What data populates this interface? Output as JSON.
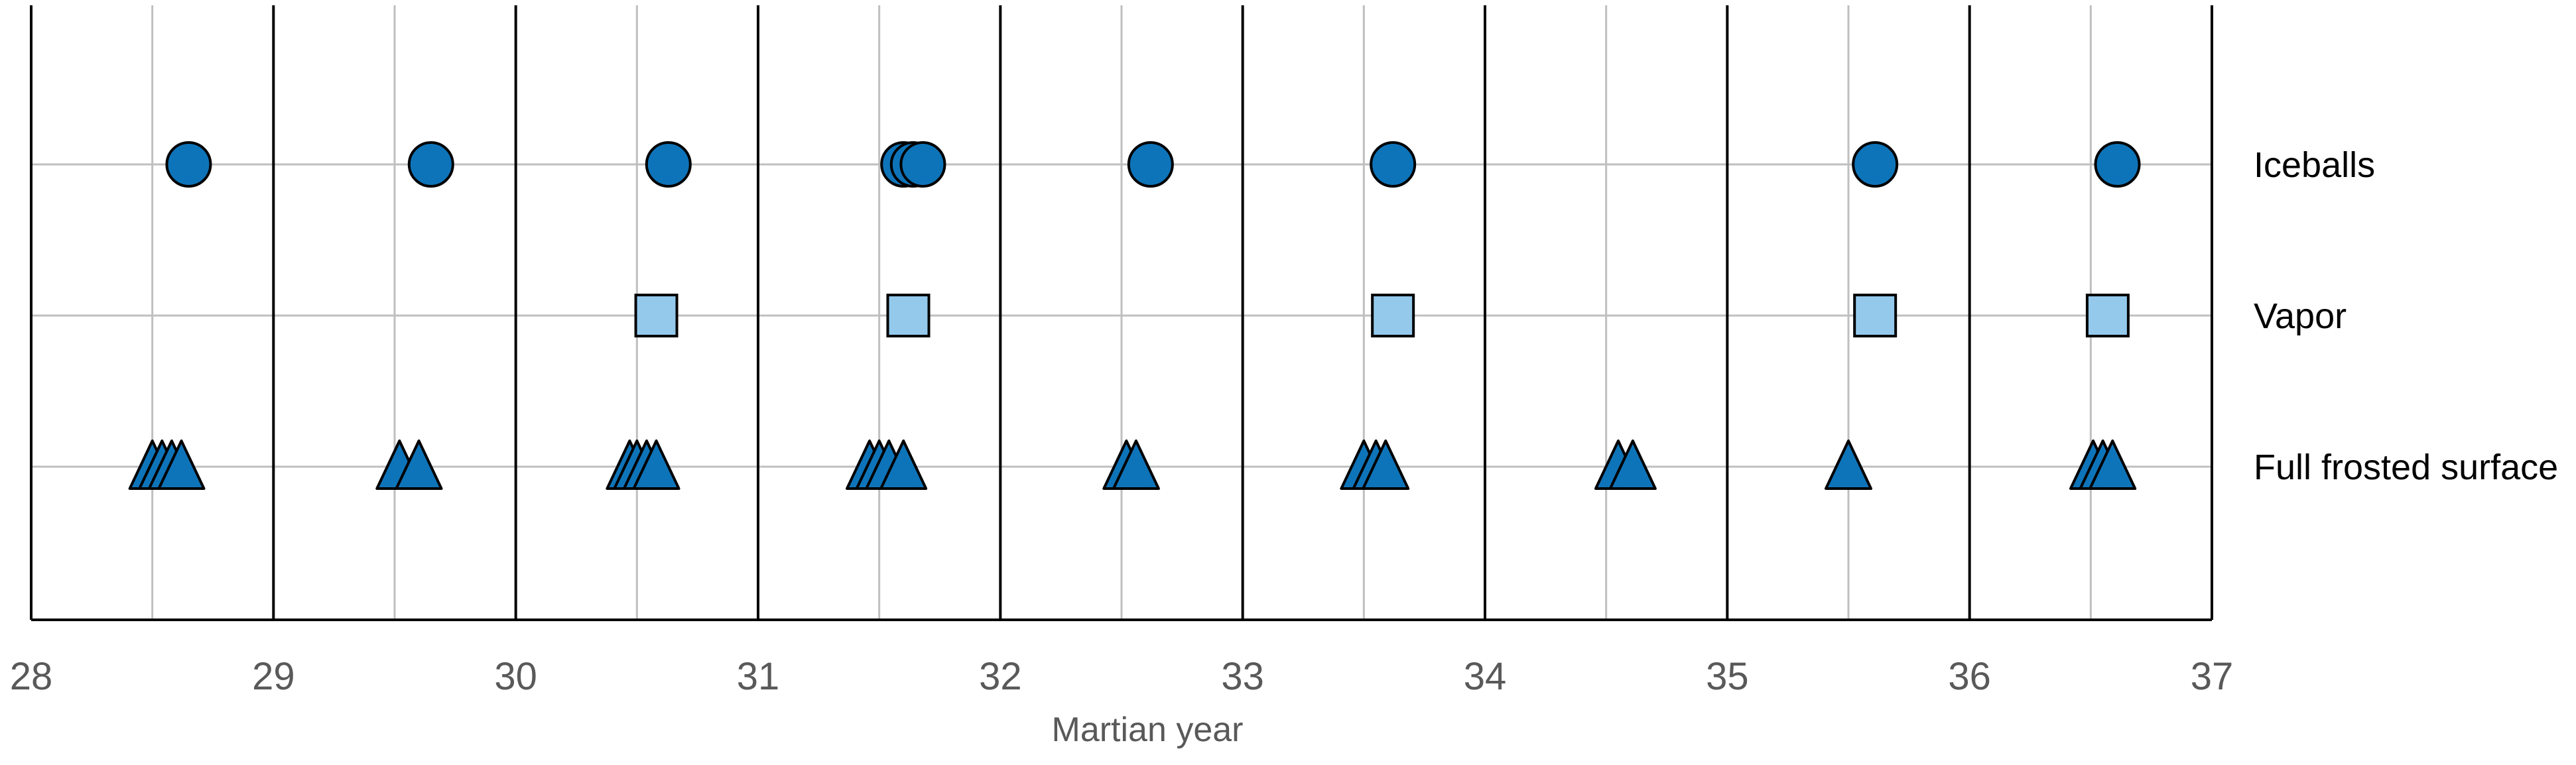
{
  "chart_data": {
    "type": "scatter",
    "title": "",
    "xlabel": "Martian year",
    "ylabel": "",
    "xlim": [
      28,
      37
    ],
    "x_ticks": [
      "28",
      "29",
      "30",
      "31",
      "32",
      "33",
      "34",
      "35",
      "36",
      "37"
    ],
    "grid": "vertical gridlines at each year (black) and half-year (gray); horizontal gridlines at category rows",
    "categories": [
      "Iceballs",
      "Vapor",
      "Full frosted surface"
    ],
    "series": [
      {
        "name": "Iceballs",
        "marker": "circle",
        "color": "#0E74B9",
        "x": [
          28.65,
          29.65,
          30.63,
          31.6,
          31.64,
          31.68,
          32.62,
          33.62,
          35.61,
          36.61
        ]
      },
      {
        "name": "Vapor",
        "marker": "square",
        "color": "#94C9EC",
        "x": [
          30.58,
          31.62,
          33.62,
          35.61,
          36.57
        ]
      },
      {
        "name": "Full frosted surface",
        "marker": "triangle",
        "color": "#0E74B9",
        "x": [
          28.5,
          28.54,
          28.58,
          28.62,
          29.52,
          29.6,
          30.47,
          30.5,
          30.54,
          30.58,
          31.46,
          31.5,
          31.54,
          31.6,
          32.52,
          32.56,
          33.5,
          33.55,
          33.59,
          34.55,
          34.61,
          35.5,
          36.51,
          36.55,
          36.59
        ]
      }
    ],
    "colors": {
      "axis": "#000000",
      "minor_grid": "#BFBFBF",
      "marker_stroke": "#000000"
    }
  }
}
